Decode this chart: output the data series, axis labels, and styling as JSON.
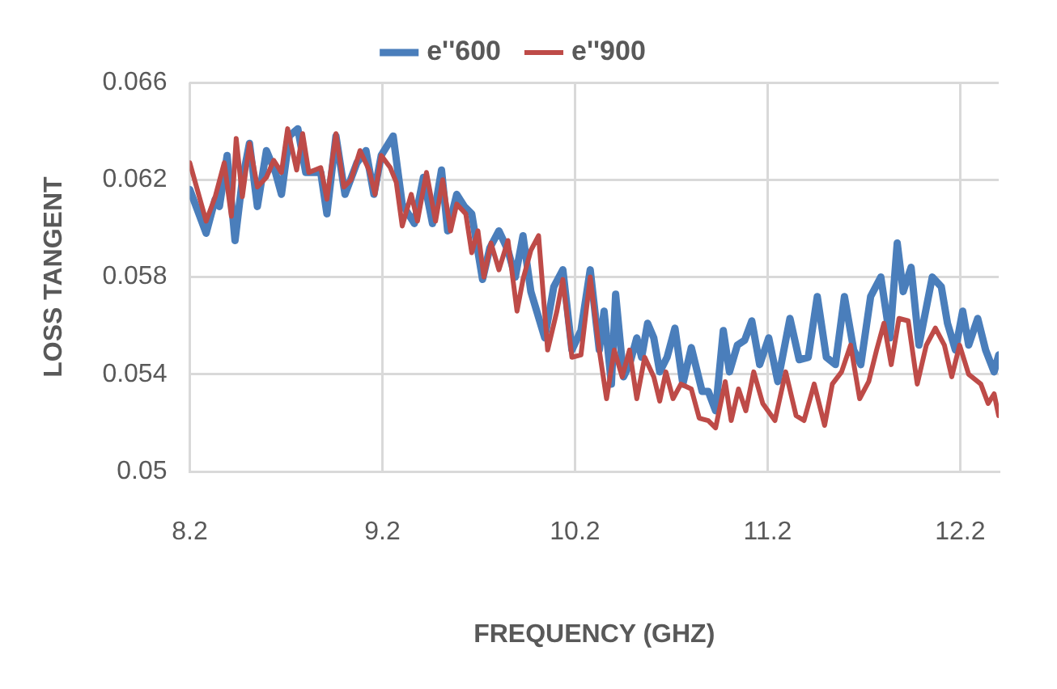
{
  "chart_data": {
    "type": "line",
    "xlabel": "FREQUENCY (GHZ)",
    "ylabel": "LOSS TANGENT",
    "xlim": [
      8.2,
      12.4
    ],
    "xticks": [
      8.2,
      9.2,
      10.2,
      11.2,
      12.2
    ],
    "ylim": [
      0.05,
      0.066
    ],
    "yticks": [
      0.05,
      0.054,
      0.058,
      0.062,
      0.066
    ],
    "grid": true,
    "legend": "top",
    "marker": "none",
    "line_style": "solid",
    "series": [
      {
        "name": "e''600",
        "color": "#4a7ebb",
        "x": [
          8.2,
          8.285,
          8.332,
          8.354,
          8.394,
          8.435,
          8.473,
          8.51,
          8.551,
          8.598,
          8.645,
          8.676,
          8.717,
          8.761,
          8.802,
          8.88,
          8.912,
          8.959,
          9.006,
          9.068,
          9.115,
          9.156,
          9.194,
          9.256,
          9.303,
          9.366,
          9.413,
          9.46,
          9.507,
          9.539,
          9.586,
          9.626,
          9.664,
          9.72,
          9.758,
          9.805,
          9.852,
          9.89,
          9.93,
          9.971,
          10.043,
          10.09,
          10.137,
          10.184,
          10.231,
          10.279,
          10.326,
          10.351,
          10.389,
          10.411,
          10.452,
          10.483,
          10.521,
          10.546,
          10.577,
          10.609,
          10.64,
          10.678,
          10.719,
          10.76,
          10.804,
          10.86,
          10.892,
          10.93,
          10.97,
          11.002,
          11.043,
          11.081,
          11.118,
          11.159,
          11.206,
          11.253,
          11.316,
          11.364,
          11.411,
          11.458,
          11.505,
          11.552,
          11.599,
          11.647,
          11.684,
          11.735,
          11.788,
          11.835,
          11.873,
          11.904,
          11.945,
          11.986,
          12.055,
          12.102,
          12.134,
          12.175,
          12.213,
          12.244,
          12.291,
          12.332,
          12.376,
          12.4
        ],
        "values": [
          0.0616,
          0.0598,
          0.0612,
          0.0609,
          0.063,
          0.0595,
          0.062,
          0.0635,
          0.0609,
          0.0632,
          0.0623,
          0.0614,
          0.0638,
          0.0641,
          0.0623,
          0.0623,
          0.0606,
          0.0638,
          0.0614,
          0.0627,
          0.0632,
          0.0614,
          0.063,
          0.0638,
          0.061,
          0.0602,
          0.0621,
          0.0602,
          0.0624,
          0.0599,
          0.0614,
          0.0609,
          0.0606,
          0.0579,
          0.0592,
          0.0599,
          0.0591,
          0.058,
          0.0597,
          0.0574,
          0.0555,
          0.0576,
          0.0583,
          0.055,
          0.0558,
          0.0583,
          0.055,
          0.0566,
          0.0536,
          0.0573,
          0.0539,
          0.0544,
          0.0555,
          0.0547,
          0.0561,
          0.0555,
          0.0541,
          0.0547,
          0.0559,
          0.0536,
          0.0551,
          0.0533,
          0.0533,
          0.0525,
          0.0558,
          0.0541,
          0.0552,
          0.0554,
          0.0562,
          0.0544,
          0.0555,
          0.0537,
          0.0563,
          0.0546,
          0.0547,
          0.0572,
          0.0547,
          0.0544,
          0.0572,
          0.055,
          0.0544,
          0.0572,
          0.058,
          0.0555,
          0.0594,
          0.0574,
          0.0584,
          0.0552,
          0.058,
          0.0576,
          0.0561,
          0.055,
          0.0566,
          0.0552,
          0.0563,
          0.055,
          0.0541,
          0.0548
        ]
      },
      {
        "name": "e''900",
        "color": "#be4b48",
        "x": [
          8.2,
          8.285,
          8.332,
          8.379,
          8.416,
          8.441,
          8.473,
          8.51,
          8.551,
          8.598,
          8.636,
          8.676,
          8.708,
          8.755,
          8.786,
          8.818,
          8.88,
          8.912,
          8.959,
          9.0,
          9.037,
          9.084,
          9.131,
          9.162,
          9.194,
          9.241,
          9.272,
          9.303,
          9.35,
          9.382,
          9.429,
          9.476,
          9.513,
          9.554,
          9.586,
          9.633,
          9.664,
          9.696,
          9.727,
          9.764,
          9.805,
          9.852,
          9.899,
          9.93,
          9.971,
          10.011,
          10.058,
          10.106,
          10.137,
          10.184,
          10.231,
          10.279,
          10.326,
          10.364,
          10.404,
          10.445,
          10.483,
          10.521,
          10.562,
          10.609,
          10.64,
          10.672,
          10.709,
          10.75,
          10.804,
          10.845,
          10.892,
          10.93,
          10.98,
          11.011,
          11.049,
          11.087,
          11.128,
          11.175,
          11.238,
          11.294,
          11.348,
          11.389,
          11.442,
          11.496,
          11.536,
          11.584,
          11.631,
          11.678,
          11.725,
          11.766,
          11.804,
          11.842,
          11.882,
          11.93,
          11.977,
          12.024,
          12.071,
          12.118,
          12.156,
          12.197,
          12.244,
          12.307,
          12.345,
          12.376,
          12.4
        ],
        "values": [
          0.0627,
          0.0603,
          0.0613,
          0.0627,
          0.0605,
          0.0637,
          0.0613,
          0.0635,
          0.0617,
          0.0621,
          0.0628,
          0.0623,
          0.0641,
          0.0624,
          0.0639,
          0.0623,
          0.0625,
          0.0612,
          0.0639,
          0.0617,
          0.062,
          0.0632,
          0.0624,
          0.0614,
          0.063,
          0.0625,
          0.0619,
          0.0601,
          0.0614,
          0.0603,
          0.0623,
          0.0603,
          0.062,
          0.0599,
          0.061,
          0.0606,
          0.059,
          0.0599,
          0.058,
          0.0594,
          0.0583,
          0.0595,
          0.0566,
          0.0579,
          0.0591,
          0.0597,
          0.055,
          0.0566,
          0.0579,
          0.0547,
          0.0548,
          0.058,
          0.055,
          0.053,
          0.055,
          0.0539,
          0.055,
          0.053,
          0.0547,
          0.0539,
          0.0529,
          0.0541,
          0.053,
          0.0536,
          0.0534,
          0.0522,
          0.0521,
          0.0518,
          0.0537,
          0.0521,
          0.0534,
          0.0525,
          0.0541,
          0.0528,
          0.0521,
          0.0541,
          0.0523,
          0.0521,
          0.0536,
          0.0519,
          0.0536,
          0.0541,
          0.0552,
          0.053,
          0.0537,
          0.055,
          0.0561,
          0.0544,
          0.0563,
          0.0562,
          0.0536,
          0.0552,
          0.0559,
          0.0552,
          0.0539,
          0.0552,
          0.054,
          0.0536,
          0.0528,
          0.0532,
          0.0523
        ]
      }
    ]
  }
}
